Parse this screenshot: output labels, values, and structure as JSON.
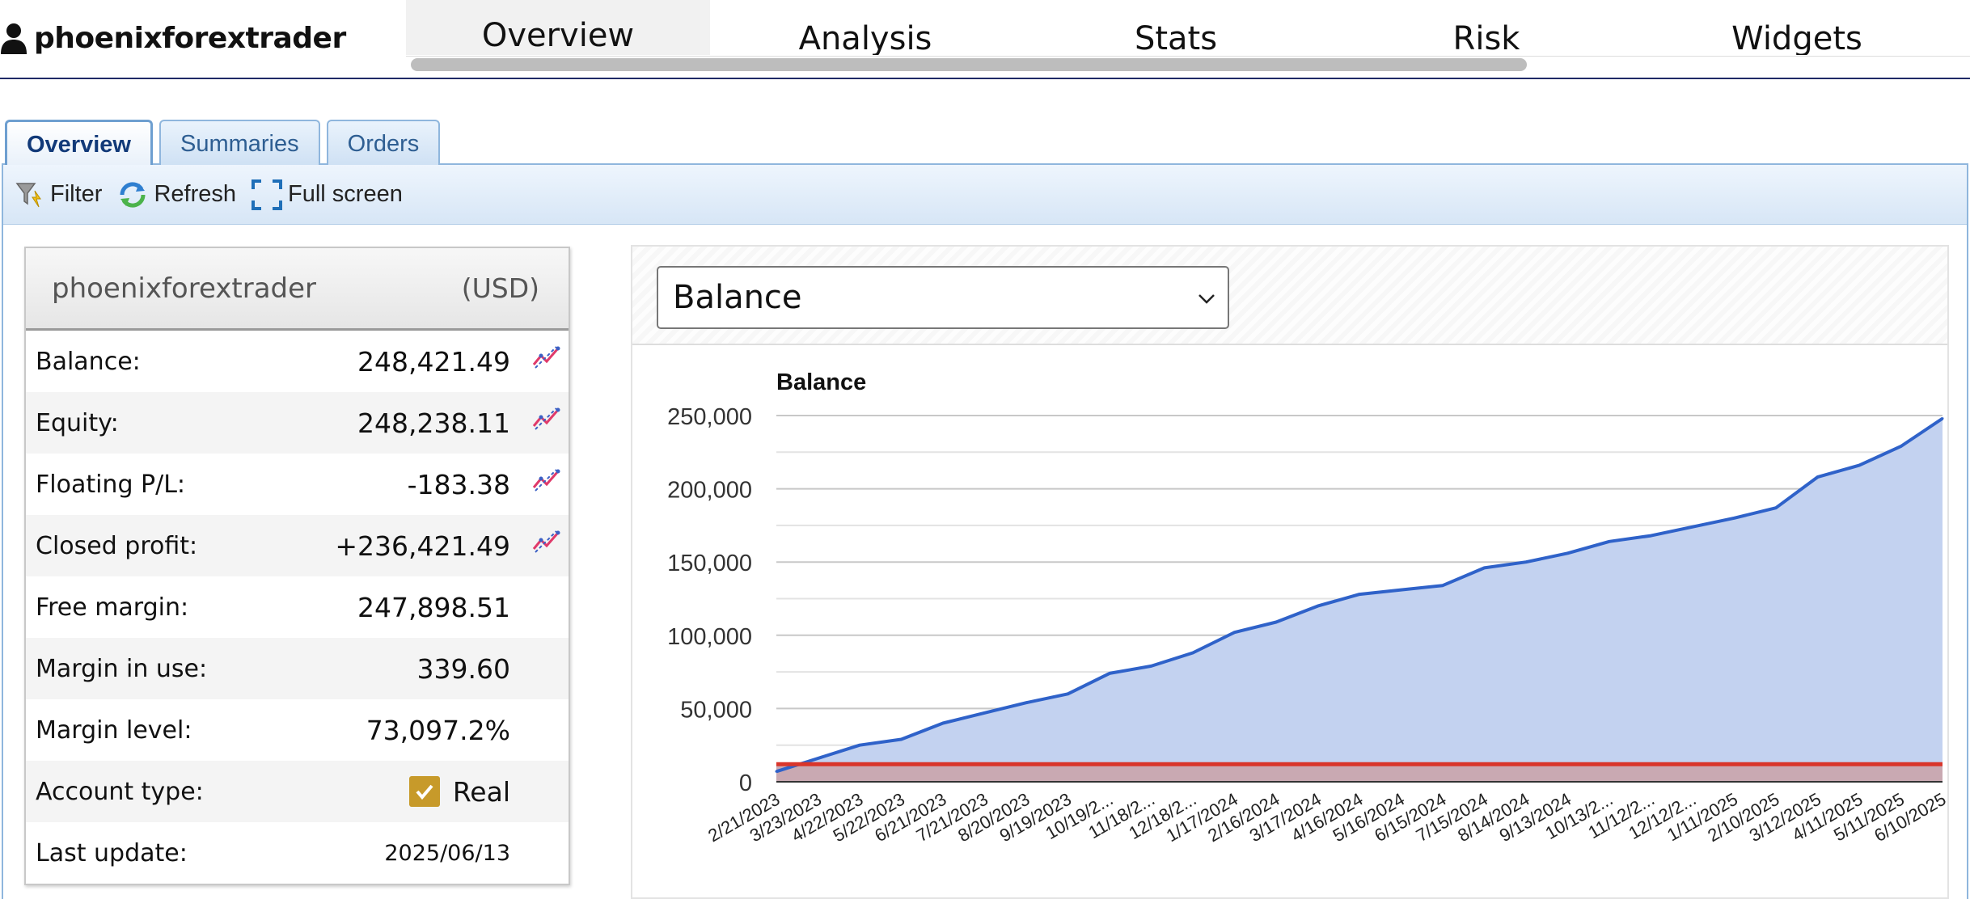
{
  "header": {
    "username": "phoenixforextrader",
    "nav_tabs": [
      "Overview",
      "Analysis",
      "Stats",
      "Risk",
      "Widgets"
    ]
  },
  "subtabs": [
    "Overview",
    "Summaries",
    "Orders"
  ],
  "toolbar": {
    "filter": "Filter",
    "refresh": "Refresh",
    "fullscreen": "Full screen"
  },
  "account": {
    "name": "phoenixforextrader",
    "currency": "(USD)",
    "rows": [
      {
        "label": "Balance:",
        "value": "248,421.49"
      },
      {
        "label": "Equity:",
        "value": "248,238.11"
      },
      {
        "label": "Floating P/L:",
        "value": "-183.38"
      },
      {
        "label": "Closed profit:",
        "value": "+236,421.49"
      },
      {
        "label": "Free margin:",
        "value": "247,898.51"
      },
      {
        "label": "Margin in use:",
        "value": "339.60"
      },
      {
        "label": "Margin level:",
        "value": "73,097.2%"
      },
      {
        "label": "Account type:",
        "value": "Real"
      },
      {
        "label": "Last update:",
        "value": "2025/06/13"
      }
    ]
  },
  "chart_select": {
    "value": "Balance"
  },
  "colors": {
    "balance_line": "#2f62c9",
    "balance_fill": "#c3d2f0",
    "deposit_line": "#d9352a",
    "deposit_fill": "#c9a9b2",
    "checkbox": "#c79a2a"
  },
  "chart_data": {
    "type": "area",
    "title": "Balance",
    "ylim": [
      0,
      250000
    ],
    "y_ticks": [
      "0",
      "50,000",
      "100,000",
      "150,000",
      "200,000",
      "250,000"
    ],
    "x_tick_labels": [
      "2/21/2023",
      "3/23/2023",
      "4/22/2023",
      "5/22/2023",
      "6/21/2023",
      "7/21/2023",
      "8/20/2023",
      "9/19/2023",
      "10/19/2...",
      "11/18/2...",
      "12/18/2...",
      "1/17/2024",
      "2/16/2024",
      "3/17/2024",
      "4/16/2024",
      "5/16/2024",
      "6/15/2024",
      "7/15/2024",
      "8/14/2024",
      "9/13/2024",
      "10/13/2...",
      "11/12/2...",
      "12/12/2...",
      "1/11/2025",
      "2/10/2025",
      "3/12/2025",
      "4/11/2025",
      "5/11/2025",
      "6/10/2025"
    ],
    "grid": true,
    "series": [
      {
        "values": [
          7000,
          16000,
          25000,
          29000,
          40000,
          47000,
          54000,
          60000,
          74000,
          79000,
          88000,
          102000,
          109000,
          120000,
          128000,
          131000,
          134000,
          146000,
          150000,
          156000,
          164000,
          168000,
          174000,
          180000,
          187000,
          208000,
          216000,
          229000,
          248000
        ]
      },
      {
        "values": [
          12000,
          12000,
          12000,
          12000,
          12000,
          12000,
          12000,
          12000,
          12000,
          12000,
          12000,
          12000,
          12000,
          12000,
          12000,
          12000,
          12000,
          12000,
          12000,
          12000,
          12000,
          12000,
          12000,
          12000,
          12000,
          12000,
          12000,
          12000,
          12000
        ]
      }
    ]
  }
}
